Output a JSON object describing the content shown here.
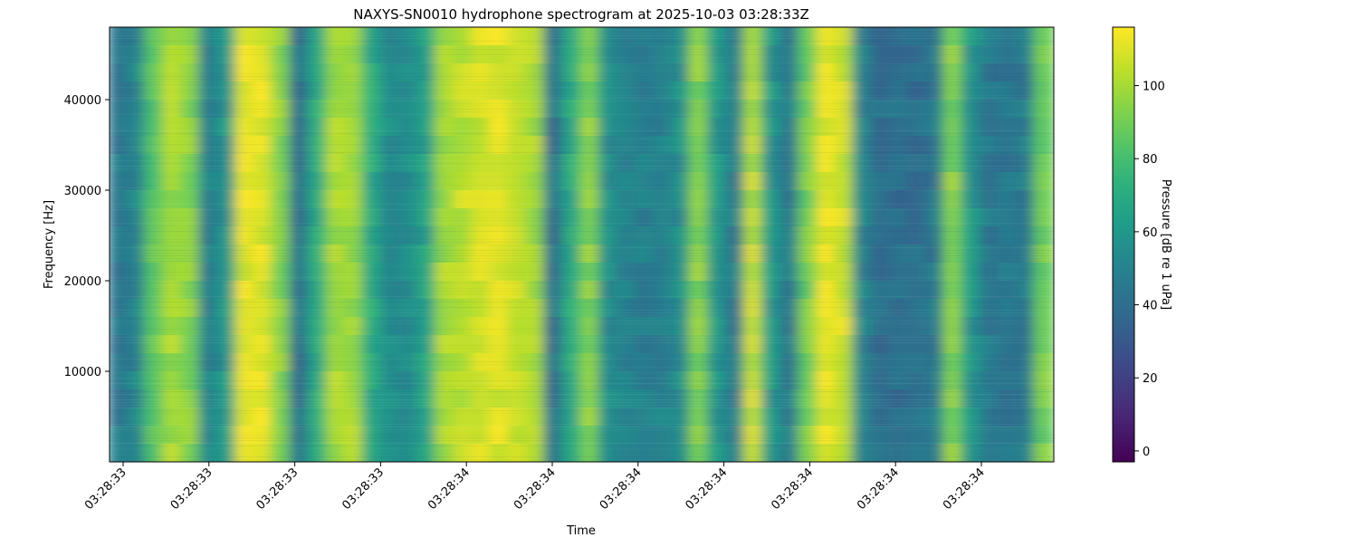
{
  "chart_data": {
    "type": "heatmap",
    "title": "NAXYS-SN0010 hydrophone spectrogram at 2025-10-03 03:28:33Z",
    "xlabel": "Time",
    "ylabel": "Frequency [Hz]",
    "x_tick_labels": [
      "03:28:33",
      "03:28:33",
      "03:28:33",
      "03:28:33",
      "03:28:34",
      "03:28:34",
      "03:28:34",
      "03:28:34",
      "03:28:34",
      "03:28:34",
      "03:28:34"
    ],
    "y_ticks": [
      10000,
      20000,
      30000,
      40000
    ],
    "ylim": [
      0,
      48000
    ],
    "colorbar": {
      "label": "Pressure [dB re 1 uPa]",
      "ticks": [
        0,
        20,
        40,
        60,
        80,
        100
      ],
      "range": [
        -3,
        116
      ],
      "colormap": "viridis"
    },
    "column_levels_db": [
      45,
      50,
      85,
      100,
      95,
      50,
      60,
      110,
      112,
      95,
      40,
      70,
      100,
      100,
      70,
      55,
      55,
      65,
      100,
      105,
      108,
      110,
      108,
      100,
      40,
      70,
      95,
      55,
      50,
      48,
      50,
      55,
      95,
      60,
      45,
      105,
      60,
      45,
      90,
      112,
      108,
      50,
      40,
      40,
      40,
      45,
      95,
      60,
      45,
      45,
      45,
      90
    ]
  }
}
